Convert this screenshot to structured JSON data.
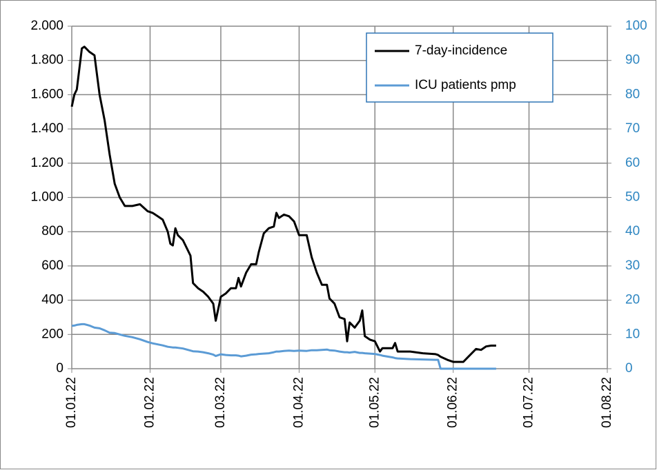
{
  "chart_data": {
    "type": "line",
    "x": [
      "2022-01-01",
      "2022-01-02",
      "2022-01-03",
      "2022-01-05",
      "2022-01-06",
      "2022-01-08",
      "2022-01-10",
      "2022-01-12",
      "2022-01-14",
      "2022-01-16",
      "2022-01-18",
      "2022-01-20",
      "2022-01-22",
      "2022-01-25",
      "2022-01-28",
      "2022-01-31",
      "2022-02-02",
      "2022-02-04",
      "2022-02-06",
      "2022-02-08",
      "2022-02-09",
      "2022-02-10",
      "2022-02-11",
      "2022-02-12",
      "2022-02-14",
      "2022-02-17",
      "2022-02-18",
      "2022-02-20",
      "2022-02-22",
      "2022-02-24",
      "2022-02-26",
      "2022-02-27",
      "2022-03-01",
      "2022-03-03",
      "2022-03-05",
      "2022-03-07",
      "2022-03-08",
      "2022-03-09",
      "2022-03-11",
      "2022-03-13",
      "2022-03-15",
      "2022-03-16",
      "2022-03-18",
      "2022-03-20",
      "2022-03-22",
      "2022-03-23",
      "2022-03-24",
      "2022-03-26",
      "2022-03-28",
      "2022-03-30",
      "2022-04-01",
      "2022-04-04",
      "2022-04-06",
      "2022-04-08",
      "2022-04-10",
      "2022-04-12",
      "2022-04-13",
      "2022-04-15",
      "2022-04-17",
      "2022-04-19",
      "2022-04-20",
      "2022-04-21",
      "2022-04-23",
      "2022-04-25",
      "2022-04-26",
      "2022-04-27",
      "2022-04-29",
      "2022-05-01",
      "2022-05-03",
      "2022-05-04",
      "2022-05-08",
      "2022-05-09",
      "2022-05-10",
      "2022-05-15",
      "2022-05-20",
      "2022-05-25",
      "2022-05-26",
      "2022-05-27",
      "2022-05-30",
      "2022-06-01",
      "2022-06-05",
      "2022-06-07",
      "2022-06-10",
      "2022-06-12",
      "2022-06-14",
      "2022-06-16",
      "2022-06-18"
    ],
    "series": [
      {
        "name": "7-day-incidence",
        "color": "#000000",
        "values": [
          1530,
          1600,
          1630,
          1870,
          1880,
          1850,
          1830,
          1600,
          1450,
          1250,
          1080,
          1000,
          950,
          950,
          960,
          920,
          910,
          890,
          870,
          800,
          730,
          720,
          820,
          780,
          750,
          660,
          500,
          470,
          450,
          420,
          380,
          280,
          420,
          440,
          470,
          470,
          530,
          480,
          560,
          610,
          610,
          680,
          790,
          820,
          830,
          910,
          880,
          900,
          890,
          860,
          780,
          780,
          650,
          560,
          490,
          490,
          410,
          380,
          300,
          290,
          160,
          270,
          240,
          280,
          340,
          190,
          170,
          160,
          100,
          120,
          120,
          150,
          100,
          100,
          90,
          85,
          80,
          70,
          50,
          40,
          40,
          70,
          115,
          110,
          130,
          135,
          135
        ]
      },
      {
        "name": "ICU patients pmp",
        "color": "#5b9bd5",
        "axis": "y2",
        "values": [
          12.5,
          12.6,
          12.8,
          13,
          13,
          12.6,
          12,
          11.8,
          11.2,
          10.5,
          10.4,
          10,
          9.6,
          9.2,
          8.6,
          7.8,
          7.4,
          7.1,
          6.8,
          6.4,
          6.3,
          6.2,
          6.2,
          6.1,
          5.9,
          5.3,
          5.1,
          5,
          4.8,
          4.5,
          4.1,
          3.7,
          4.2,
          4,
          3.9,
          3.9,
          3.8,
          3.6,
          3.8,
          4.1,
          4.2,
          4.3,
          4.4,
          4.5,
          4.8,
          5,
          5,
          5.2,
          5.3,
          5.2,
          5.3,
          5.2,
          5.4,
          5.4,
          5.5,
          5.6,
          5.4,
          5.3,
          5,
          4.8,
          4.8,
          4.7,
          4.9,
          4.6,
          4.6,
          4.5,
          4.4,
          4.3,
          4,
          3.8,
          3.3,
          3.1,
          3,
          2.8,
          2.7,
          2.6,
          2.6,
          0,
          0,
          0,
          0,
          0,
          0,
          0,
          0,
          0,
          0
        ]
      }
    ],
    "xlim": [
      "2022-01-01",
      "2022-08-01"
    ],
    "xticks": [
      {
        "value": "2022-01-01",
        "label": "01.01.22"
      },
      {
        "value": "2022-02-01",
        "label": "01.02.22"
      },
      {
        "value": "2022-03-01",
        "label": "01.03.22"
      },
      {
        "value": "2022-04-01",
        "label": "01.04.22"
      },
      {
        "value": "2022-05-01",
        "label": "01.05.22"
      },
      {
        "value": "2022-06-01",
        "label": "01.06.22"
      },
      {
        "value": "2022-07-01",
        "label": "01.07.22"
      },
      {
        "value": "2022-08-01",
        "label": "01.08.22"
      }
    ],
    "ylim": [
      0,
      2000
    ],
    "yticks": [
      0,
      200,
      400,
      600,
      800,
      {
        "value": 1000,
        "label": "1.000"
      },
      {
        "value": 1200,
        "label": "1.200"
      },
      {
        "value": 1400,
        "label": "1.400"
      },
      {
        "value": 1600,
        "label": "1.600"
      },
      {
        "value": 1800,
        "label": "1.800"
      },
      {
        "value": 2000,
        "label": "2.000"
      }
    ],
    "y2lim": [
      0,
      100
    ],
    "y2ticks": [
      0,
      10,
      20,
      30,
      40,
      50,
      60,
      70,
      80,
      90,
      100
    ],
    "grid": true,
    "legend": "top-right"
  }
}
